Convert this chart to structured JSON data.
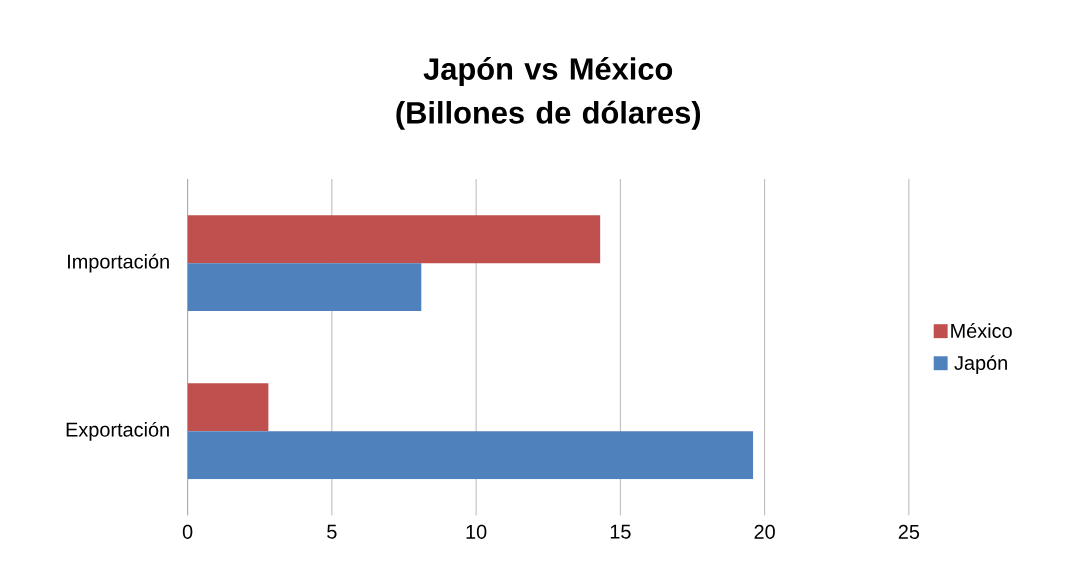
{
  "chart_data": {
    "type": "bar",
    "orientation": "horizontal",
    "title": "Japón vs México (Billones de dólares)",
    "categories": [
      "Importación",
      "Exportación"
    ],
    "series": [
      {
        "name": "México",
        "color": "#c0504d",
        "values": [
          14.3,
          2.8
        ]
      },
      {
        "name": "Japón",
        "color": "#4f81bd",
        "values": [
          8.1,
          19.6
        ]
      }
    ],
    "xlim": [
      0,
      25
    ],
    "xticks": [
      0,
      5,
      10,
      15,
      20,
      25
    ],
    "grid": "x",
    "legend": "right"
  }
}
